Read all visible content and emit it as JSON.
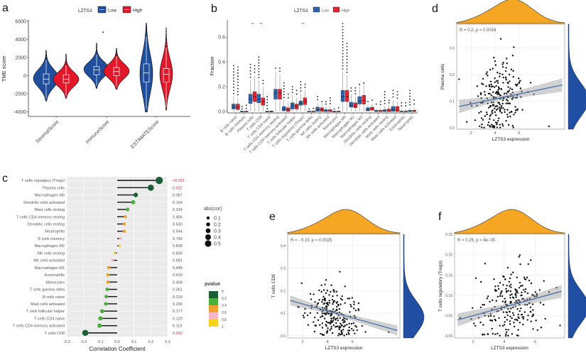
{
  "panels": {
    "a": "a",
    "b": "b",
    "c": "c",
    "d": "d",
    "e": "e",
    "f": "f"
  },
  "chart_data": [
    {
      "panel": "a",
      "type": "violin",
      "title": "",
      "ylabel": "TME score",
      "xlabel": "",
      "ylim": [
        -4500,
        6000
      ],
      "yticks": [
        -4000,
        -2000,
        0,
        2000,
        4000,
        6000
      ],
      "legend": {
        "title": "LZTS3",
        "position": "top",
        "items": [
          {
            "name": "Low",
            "color": "#1f4e9c"
          },
          {
            "name": "High",
            "color": "#e3172a"
          }
        ]
      },
      "categories": [
        "StromalScore",
        "ImmuneScore",
        "ESTIMATEScore"
      ],
      "series": [
        {
          "name": "Low",
          "color": "#1f4e9c",
          "groups": [
            {
              "min": -2800,
              "q1": -900,
              "median": -400,
              "q3": 200,
              "max": 1800,
              "whisker_top": 2800,
              "density_peak": -300
            },
            {
              "min": -1400,
              "q1": 100,
              "median": 650,
              "q3": 1000,
              "max": 2400,
              "whisker_top": 3600,
              "outlier": 4800,
              "density_peak": 700
            },
            {
              "min": -4000,
              "q1": -700,
              "median": 300,
              "q3": 1300,
              "max": 4400,
              "whisker_top": 5800,
              "density_peak": 200
            }
          ]
        },
        {
          "name": "High",
          "color": "#e3172a",
          "groups": [
            {
              "min": -2500,
              "q1": -800,
              "median": -400,
              "q3": 100,
              "max": 1200,
              "whisker_top": 2400,
              "density_peak": -400
            },
            {
              "min": -1500,
              "q1": 0,
              "median": 450,
              "q3": 900,
              "max": 2200,
              "whisker_top": 3000,
              "density_peak": 500
            },
            {
              "min": -3800,
              "q1": -700,
              "median": 150,
              "q3": 800,
              "max": 3200,
              "whisker_top": 5300,
              "density_peak": 200
            }
          ]
        }
      ]
    },
    {
      "panel": "b",
      "type": "boxplot",
      "ylabel": "Fraction",
      "xlabel": "",
      "ylim": [
        0,
        0.74
      ],
      "yticks": [
        0.0,
        0.2,
        0.4,
        0.6
      ],
      "legend": {
        "title": "LZTS3",
        "position": "top",
        "items": [
          {
            "name": "Low",
            "color": "#2e63ad"
          },
          {
            "name": "High",
            "color": "#e02432"
          }
        ]
      },
      "categories": [
        "B cells naive",
        "B cells memory",
        "Plasma cells",
        "T cells CD8",
        "T cells CD4 naive",
        "T cells CD4 memory resting",
        "T cells CD4 memory activated",
        "T cells follicular helper",
        "T cells regulatory (Tregs)",
        "T cells gamma delta",
        "NK cells resting",
        "NK cells activated",
        "Monocytes",
        "Macrophages M0",
        "Macrophages M1",
        "Macrophages M2",
        "Dendritic cells resting",
        "Dendritic cells activated",
        "Mast cells resting",
        "Mast cells activated",
        "Eosinophils",
        "Neutrophils"
      ],
      "significance": [
        "",
        "",
        "**",
        "**",
        "",
        "",
        "",
        "",
        "**",
        "",
        "",
        "",
        "",
        "",
        "",
        "",
        "",
        "",
        "",
        "",
        "",
        ""
      ],
      "series": [
        {
          "name": "Low",
          "boxes": [
            [
              0.0,
              0.02,
              0.035,
              0.06,
              0.12,
              0.37
            ],
            [
              0.0,
              0.0,
              0.0,
              0.0,
              0.0,
              0.04
            ],
            [
              0.0,
              0.065,
              0.1,
              0.14,
              0.25,
              0.38
            ],
            [
              0.0,
              0.07,
              0.1,
              0.14,
              0.25,
              0.44
            ],
            [
              0.0,
              0.0,
              0.0,
              0.0,
              0.0,
              0.12
            ],
            [
              0.0,
              0.1,
              0.15,
              0.18,
              0.32,
              0.35
            ],
            [
              0.0,
              0.005,
              0.02,
              0.04,
              0.09,
              0.23
            ],
            [
              0.0,
              0.02,
              0.045,
              0.07,
              0.13,
              0.2
            ],
            [
              0.0,
              0.05,
              0.065,
              0.085,
              0.14,
              0.24
            ],
            [
              0.0,
              0.0,
              0.0,
              0.0,
              0.0,
              0.02
            ],
            [
              0.0,
              0.0,
              0.015,
              0.035,
              0.07,
              0.12
            ],
            [
              0.0,
              0.0,
              0.0,
              0.015,
              0.04,
              0.08
            ],
            [
              0.0,
              0.0,
              0.0,
              0.0,
              0.0,
              0.02
            ],
            [
              0.0,
              0.08,
              0.12,
              0.17,
              0.32,
              0.71
            ],
            [
              0.0,
              0.035,
              0.05,
              0.075,
              0.14,
              0.19
            ],
            [
              0.0,
              0.06,
              0.085,
              0.12,
              0.22,
              0.22
            ],
            [
              0.0,
              0.005,
              0.015,
              0.03,
              0.06,
              0.08
            ],
            [
              0.0,
              0.0,
              0.0,
              0.01,
              0.025,
              0.06
            ],
            [
              0.0,
              0.0,
              0.0,
              0.015,
              0.04,
              0.16
            ],
            [
              0.0,
              0.0,
              0.015,
              0.04,
              0.09,
              0.17
            ],
            [
              0.0,
              0.0,
              0.0,
              0.0,
              0.02,
              0.07
            ],
            [
              0.0,
              0.0,
              0.0,
              0.01,
              0.03,
              0.17
            ]
          ]
        },
        {
          "name": "High",
          "boxes": [
            [
              0.0,
              0.015,
              0.035,
              0.06,
              0.11,
              0.36
            ],
            [
              0.0,
              0.0,
              0.0,
              0.0,
              0.0,
              0.05
            ],
            [
              0.0,
              0.08,
              0.12,
              0.16,
              0.29,
              0.37
            ],
            [
              0.0,
              0.05,
              0.08,
              0.11,
              0.2,
              0.25
            ],
            [
              0.0,
              0.0,
              0.0,
              0.0,
              0.0,
              0.0
            ],
            [
              0.0,
              0.1,
              0.15,
              0.18,
              0.3,
              0.35
            ],
            [
              0.0,
              0.0,
              0.015,
              0.03,
              0.08,
              0.14
            ],
            [
              0.0,
              0.02,
              0.04,
              0.06,
              0.11,
              0.17
            ],
            [
              0.0,
              0.055,
              0.08,
              0.11,
              0.17,
              0.22
            ],
            [
              0.0,
              0.0,
              0.0,
              0.0,
              0.0,
              0.025
            ],
            [
              0.0,
              0.0,
              0.015,
              0.03,
              0.07,
              0.08
            ],
            [
              0.0,
              0.0,
              0.0,
              0.015,
              0.04,
              0.11
            ],
            [
              0.0,
              0.0,
              0.0,
              0.0,
              0.0,
              0.03
            ],
            [
              0.0,
              0.08,
              0.12,
              0.17,
              0.29,
              0.55
            ],
            [
              0.0,
              0.03,
              0.045,
              0.07,
              0.12,
              0.19
            ],
            [
              0.0,
              0.06,
              0.09,
              0.13,
              0.23,
              0.23
            ],
            [
              0.0,
              0.01,
              0.02,
              0.035,
              0.06,
              0.09
            ],
            [
              0.0,
              0.0,
              0.0,
              0.01,
              0.03,
              0.08
            ],
            [
              0.0,
              0.0,
              0.0,
              0.02,
              0.05,
              0.09
            ],
            [
              0.0,
              0.0,
              0.01,
              0.04,
              0.08,
              0.16
            ],
            [
              0.0,
              0.0,
              0.0,
              0.0,
              0.02,
              0.07
            ],
            [
              0.0,
              0.0,
              0.0,
              0.01,
              0.03,
              0.09
            ]
          ]
        }
      ]
    },
    {
      "panel": "c",
      "type": "lollipop",
      "xlabel": "Correlation Coefficient",
      "ylabel": "",
      "xlim": [
        -0.3,
        0.3
      ],
      "xticks": [
        -0.3,
        -0.2,
        -0.1,
        0.0,
        0.1,
        0.2,
        0.3
      ],
      "grid": true,
      "categories": [
        "T cells regulatory (Tregs)",
        "Plasma cells",
        "Macrophages M0",
        "Dendritic cells activated",
        "Mast cells resting",
        "T cells CD4 memory resting",
        "Dendritic cells resting",
        "Neutrophils",
        "B cells memory",
        "Macrophages M2",
        "NK cells resting",
        "NK cells activated",
        "Macrophages M1",
        "Eosinophils",
        "Monocytes",
        "T cells gamma delta",
        "B cells naive",
        "Mast cells activated",
        "T cells follicular helper",
        "T cells CD4 naive",
        "T cells CD4 memory activated",
        "T cells CD8"
      ],
      "values": [
        0.25,
        0.2,
        0.11,
        0.095,
        0.062,
        0.048,
        0.042,
        0.042,
        0.02,
        0.015,
        -0.015,
        -0.027,
        -0.05,
        -0.055,
        -0.055,
        -0.06,
        -0.065,
        -0.068,
        -0.09,
        -0.1,
        -0.105,
        -0.19
      ],
      "pvalue_labels": [
        "<0.001",
        "0.002",
        "0.087",
        "0.154",
        "0.334",
        "0.456",
        "0.530",
        "0.544",
        "0.749",
        "0.808",
        "0.809",
        "0.681",
        "0.448",
        "0.418",
        "0.408",
        "0.361",
        "0.316",
        "0.296",
        "0.177",
        "0.120",
        "0.113",
        "0.002"
      ],
      "pvalues": [
        0.0005,
        0.002,
        0.087,
        0.154,
        0.334,
        0.456,
        0.53,
        0.544,
        0.749,
        0.808,
        0.809,
        0.681,
        0.448,
        0.418,
        0.408,
        0.361,
        0.316,
        0.296,
        0.177,
        0.12,
        0.113,
        0.002
      ],
      "significant_color": "#d6334a",
      "size_legend": {
        "title": "abs(cor)",
        "position": "right",
        "values": [
          0.1,
          0.2,
          0.3,
          0.4,
          0.5
        ]
      },
      "color_legend": {
        "title": "pvalue",
        "position": "right",
        "ticks": [
          "0",
          "0.2",
          "0.4",
          "0.6",
          "0.8",
          "1"
        ],
        "colors": [
          "#1b5e37",
          "#4caf3c",
          "#f0a030",
          "#f5b8c8",
          "#f7d31a"
        ]
      }
    },
    {
      "panel": "d",
      "type": "scatter",
      "xlabel": "LZTS3 expression",
      "ylabel": "Plasma cells",
      "annotation": "R = 0.2, p = 0.0016",
      "xlim": [
        0.8,
        9.8
      ],
      "ylim": [
        -0.005,
        0.39
      ],
      "xticks": [
        2,
        4,
        6
      ],
      "yticks": [
        0.0,
        0.1,
        0.2,
        0.3
      ],
      "regression": {
        "slope": 0.0094,
        "intercept": 0.071
      },
      "marginal_x_color": "#f5a623",
      "marginal_y_color": "#1f4ea3"
    },
    {
      "panel": "e",
      "type": "scatter",
      "xlabel": "LZTS3 expression",
      "ylabel": "T cells CD8",
      "annotation": "R = - 0.19, p = 0.0025",
      "xlim": [
        0.8,
        9.8
      ],
      "ylim": [
        -0.01,
        0.45
      ],
      "xticks": [
        2,
        4,
        6
      ],
      "yticks": [
        0.0,
        0.1,
        0.2,
        0.3,
        0.4
      ],
      "regression": {
        "slope": -0.0155,
        "intercept": 0.172
      },
      "marginal_x_color": "#f5a623",
      "marginal_y_color": "#1f4ea3"
    },
    {
      "panel": "f",
      "type": "scatter",
      "xlabel": "LZTS3 expression",
      "ylabel": "T cells regulatory (Tregs)",
      "annotation": "R = 0.25, p = 8e−05",
      "xlim": [
        0.8,
        7.9
      ],
      "ylim": [
        -0.005,
        0.25
      ],
      "xticks": [
        2,
        4,
        6
      ],
      "yticks": [
        0.0,
        0.05,
        0.1,
        0.15,
        0.2,
        0.25
      ],
      "ytick_labels": [
        "0.00",
        "0.05",
        "0.10",
        "0.15",
        "0.20",
        "0.25"
      ],
      "regression": {
        "slope": 0.0105,
        "intercept": 0.029
      },
      "marginal_x_color": "#f5a623",
      "marginal_y_color": "#1f4ea3"
    }
  ]
}
